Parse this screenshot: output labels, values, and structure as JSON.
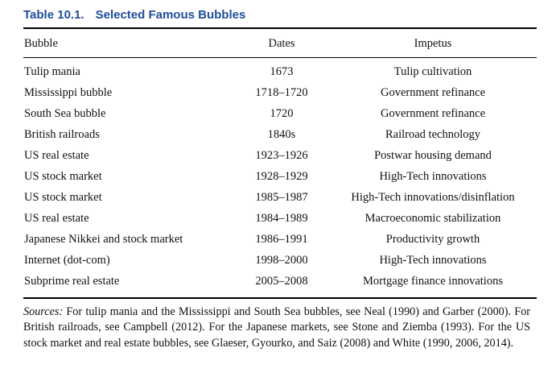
{
  "table": {
    "label": "Table 10.1.",
    "title": "Selected Famous Bubbles",
    "headers": [
      "Bubble",
      "Dates",
      "Impetus"
    ],
    "rows": [
      [
        "Tulip mania",
        "1673",
        "Tulip cultivation"
      ],
      [
        "Mississippi bubble",
        "1718–1720",
        "Government refinance"
      ],
      [
        "South Sea bubble",
        "1720",
        "Government refinance"
      ],
      [
        "British railroads",
        "1840s",
        "Railroad technology"
      ],
      [
        "US real estate",
        "1923–1926",
        "Postwar housing demand"
      ],
      [
        "US stock market",
        "1928–1929",
        "High-Tech innovations"
      ],
      [
        "US stock market",
        "1985–1987",
        "High-Tech innovations/disinflation"
      ],
      [
        "US real estate",
        "1984–1989",
        "Macroeconomic stabilization"
      ],
      [
        "Japanese Nikkei and stock market",
        "1986–1991",
        "Productivity growth"
      ],
      [
        "Internet (dot-com)",
        "1998–2000",
        "High-Tech innovations"
      ],
      [
        "Subprime real estate",
        "2005–2008",
        "Mortgage finance innovations"
      ]
    ]
  },
  "sources": {
    "label": "Sources:",
    "text": "For tulip mania and the Mississippi and South Sea bubbles, see Neal (1990) and Garber (2000). For British railroads, see Campbell (2012). For the Japanese markets, see Stone and Ziemba (1993). For the US stock market and real estate bubbles, see Glaeser, Gyourko, and Saiz (2008) and White (1990, 2006, 2014)."
  }
}
